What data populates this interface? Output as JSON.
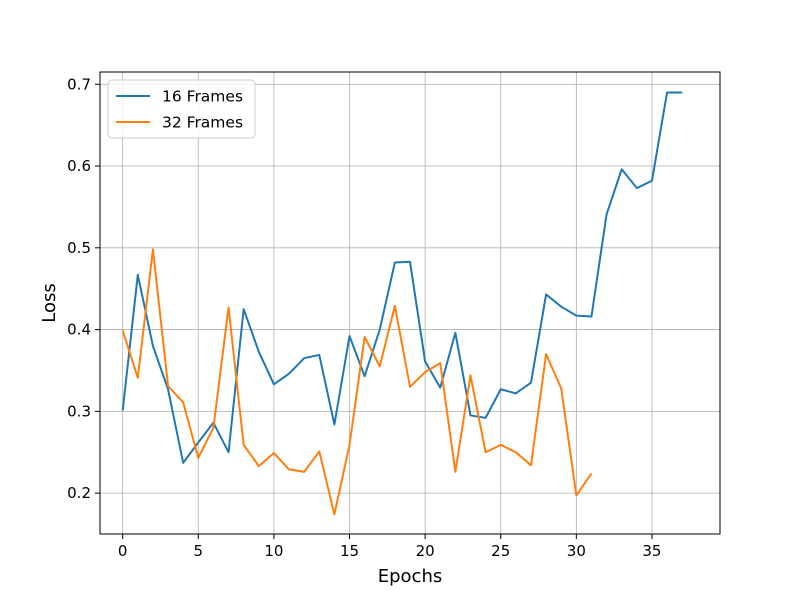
{
  "chart_data": {
    "type": "line",
    "xlabel": "Epochs",
    "ylabel": "Loss",
    "xlim": [
      -1.5,
      39.5
    ],
    "ylim": [
      0.15,
      0.715
    ],
    "xticks": [
      0,
      5,
      10,
      15,
      20,
      25,
      30,
      35
    ],
    "yticks": [
      0.2,
      0.3,
      0.4,
      0.5,
      0.6,
      0.7
    ],
    "xtick_labels": [
      "0",
      "5",
      "10",
      "15",
      "20",
      "25",
      "30",
      "35"
    ],
    "ytick_labels": [
      "0.2",
      "0.3",
      "0.4",
      "0.5",
      "0.6",
      "0.7"
    ],
    "grid": true,
    "legend_position": "top-left",
    "series": [
      {
        "name": "16 Frames",
        "color": "#1f77b4",
        "x": [
          0,
          1,
          2,
          3,
          4,
          5,
          6,
          7,
          8,
          9,
          10,
          11,
          12,
          13,
          14,
          15,
          16,
          17,
          18,
          19,
          20,
          21,
          22,
          23,
          24,
          25,
          26,
          27,
          28,
          29,
          30,
          31,
          32,
          33,
          34,
          35,
          36,
          37
        ],
        "values": [
          0.301,
          0.467,
          0.38,
          0.327,
          0.237,
          0.262,
          0.286,
          0.25,
          0.425,
          0.373,
          0.333,
          0.346,
          0.365,
          0.369,
          0.284,
          0.392,
          0.343,
          0.4,
          0.482,
          0.483,
          0.361,
          0.329,
          0.396,
          0.295,
          0.292,
          0.327,
          0.322,
          0.335,
          0.443,
          0.428,
          0.417,
          0.416,
          0.541,
          0.596,
          0.573,
          0.582,
          0.69,
          0.69
        ]
      },
      {
        "name": "32 Frames",
        "color": "#ff7f0e",
        "x": [
          0,
          1,
          2,
          3,
          4,
          5,
          6,
          7,
          8,
          9,
          10,
          11,
          12,
          13,
          14,
          15,
          16,
          17,
          18,
          19,
          20,
          21,
          22,
          23,
          24,
          25,
          26,
          27,
          28,
          29,
          30,
          31
        ],
        "values": [
          0.399,
          0.341,
          0.498,
          0.331,
          0.311,
          0.243,
          0.28,
          0.427,
          0.259,
          0.233,
          0.249,
          0.229,
          0.226,
          0.251,
          0.174,
          0.259,
          0.391,
          0.355,
          0.429,
          0.33,
          0.348,
          0.359,
          0.226,
          0.344,
          0.25,
          0.259,
          0.25,
          0.234,
          0.37,
          0.328,
          0.197,
          0.224
        ]
      }
    ]
  }
}
